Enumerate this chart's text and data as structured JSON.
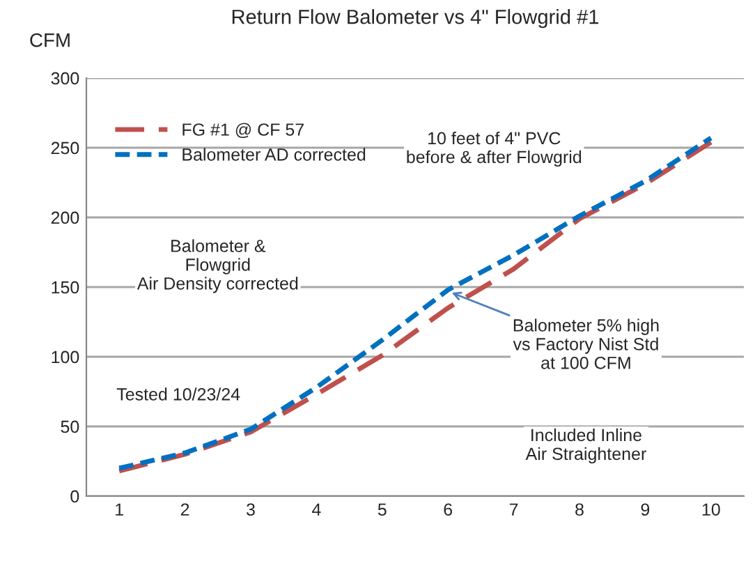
{
  "chart_data": {
    "type": "line",
    "title": "Return Flow Balometer vs 4\" Flowgrid #1",
    "ylabel": "CFM",
    "categories": [
      "1",
      "2",
      "3",
      "4",
      "5",
      "6",
      "7",
      "8",
      "9",
      "10"
    ],
    "series": [
      {
        "name": "FG #1 @ CF 57",
        "color": "#c0504d",
        "values": [
          18,
          30,
          46,
          73,
          101,
          135,
          163,
          199,
          224,
          254
        ],
        "line_style": "dashed"
      },
      {
        "name": "Balometer AD corrected",
        "color": "#0070c0",
        "values": [
          20,
          31,
          48,
          78,
          112,
          148,
          173,
          201,
          226,
          257
        ],
        "line_style": "dotted"
      }
    ],
    "ylim": [
      0,
      300
    ],
    "yticks": [
      0,
      50,
      100,
      150,
      200,
      250,
      300
    ],
    "grid": "y",
    "legend": "top left",
    "marker": "none",
    "annotations": [
      "10 feet of 4\" PVC\nbefore & after Flowgrid",
      "Balometer &\nFlowgrid\nAir Density corrected",
      "Tested 10/23/24",
      "Included Inline\nAir Straightener",
      {
        "text": "Balometer 5% high\nvs Factory Nist Std\nat 100 CFM",
        "x": "6",
        "y": 147
      }
    ]
  }
}
